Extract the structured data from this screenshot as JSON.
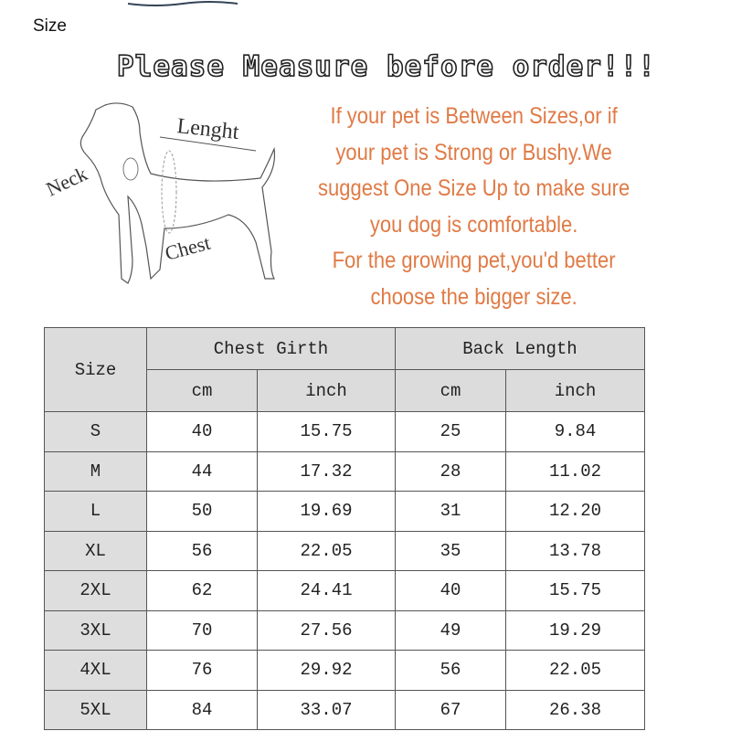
{
  "page_label": "Size",
  "headline": "Please Measure before order!!!",
  "diagram_labels": {
    "length": "Lenght",
    "neck": "Neck",
    "chest": "Chest"
  },
  "advice_lines": [
    "If your pet is Between Sizes,or if",
    "your pet is Strong or Bushy.We",
    "suggest One Size Up to make sure",
    "you dog is comfortable.",
    "For the growing pet,you'd better",
    "choose the bigger size."
  ],
  "colors": {
    "advice_text": "#e07a45",
    "header_bg": "#dcdcdc"
  },
  "table": {
    "size_header": "Size",
    "groups": [
      "Chest Girth",
      "Back Length"
    ],
    "units": [
      "cm",
      "inch",
      "cm",
      "inch"
    ],
    "rows": [
      [
        "S",
        "40",
        "15.75",
        "25",
        "9.84"
      ],
      [
        "M",
        "44",
        "17.32",
        "28",
        "11.02"
      ],
      [
        "L",
        "50",
        "19.69",
        "31",
        "12.20"
      ],
      [
        "XL",
        "56",
        "22.05",
        "35",
        "13.78"
      ],
      [
        "2XL",
        "62",
        "24.41",
        "40",
        "15.75"
      ],
      [
        "3XL",
        "70",
        "27.56",
        "49",
        "19.29"
      ],
      [
        "4XL",
        "76",
        "29.92",
        "56",
        "22.05"
      ],
      [
        "5XL",
        "84",
        "33.07",
        "67",
        "26.38"
      ]
    ]
  }
}
